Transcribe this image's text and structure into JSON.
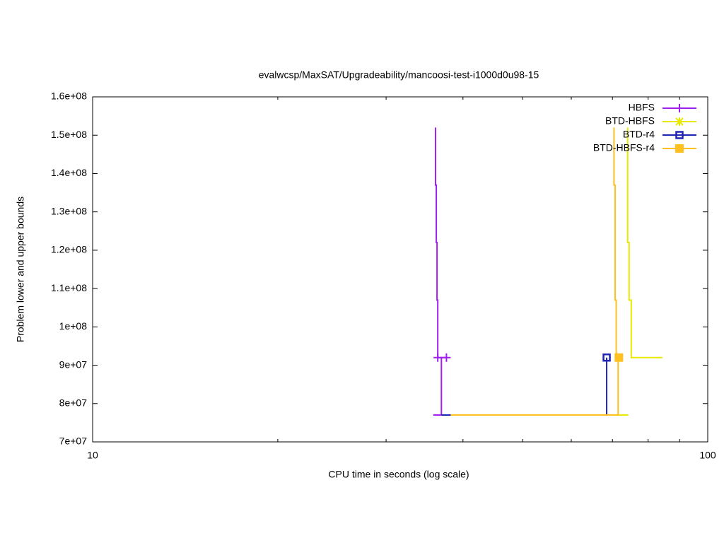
{
  "chart_data": {
    "type": "line",
    "title": "evalwcsp/MaxSAT/Upgradeability/mancoosi-test-i1000d0u98-15",
    "x_label": "CPU time in seconds (log scale)",
    "y_label": "Problem lower and upper bounds",
    "xlim": [
      10,
      100
    ],
    "x_log": true,
    "xticks": [
      10,
      100
    ],
    "xminorticks": [
      20,
      30,
      40,
      50,
      60,
      70,
      80,
      90
    ],
    "ylim": [
      70000000,
      160000000
    ],
    "yticks": [
      {
        "value": 70000000,
        "label": "7e+07"
      },
      {
        "value": 80000000,
        "label": "8e+07"
      },
      {
        "value": 90000000,
        "label": "9e+07"
      },
      {
        "value": 100000000,
        "label": "1e+08"
      },
      {
        "value": 110000000,
        "label": "1.1e+08"
      },
      {
        "value": 120000000,
        "label": "1.2e+08"
      },
      {
        "value": 130000000,
        "label": "1.3e+08"
      },
      {
        "value": 140000000,
        "label": "1.4e+08"
      },
      {
        "value": 150000000,
        "label": "1.5e+08"
      },
      {
        "value": 160000000,
        "label": "1.6e+08"
      }
    ],
    "legend": "top-right",
    "series": [
      {
        "name": "HBFS",
        "color": "#a020f0",
        "marker": "plus",
        "x": [
          35.8,
          36.9,
          36.9,
          null,
          36.1,
          36.1,
          36.2,
          36.2,
          36.3,
          36.3,
          36.4,
          36.4,
          37.6
        ],
        "y": [
          77000000,
          77000000,
          92000000,
          null,
          152000000,
          137000000,
          137000000,
          122000000,
          122000000,
          107000000,
          107000000,
          92000000,
          92000000
        ],
        "marker_x": [
          36.4,
          37.6
        ],
        "marker_y": [
          92000000,
          92000000
        ]
      },
      {
        "name": "BTD-HBFS",
        "color": "#e8e800",
        "marker": "star",
        "x": [
          38.2,
          74.3,
          null,
          74.1,
          74.1,
          74.5,
          74.5,
          75.1,
          75.1,
          84.4
        ],
        "y": [
          77000000,
          77000000,
          null,
          152000000,
          122000000,
          122000000,
          107000000,
          107000000,
          92000000,
          92000000
        ],
        "marker_x": [],
        "marker_y": []
      },
      {
        "name": "BTD-r4",
        "color": "#1f24b4",
        "marker": "open-square",
        "x": [
          36.9,
          68.5,
          68.5
        ],
        "y": [
          77000000,
          77000000,
          92000000
        ],
        "marker_x": [
          68.5
        ],
        "marker_y": [
          92000000
        ]
      },
      {
        "name": "BTD-HBFS-r4",
        "color": "#ffc020",
        "marker": "filled-square",
        "x": [
          38.2,
          71.5,
          71.5,
          null,
          70.4,
          70.4,
          70.7,
          70.7,
          71.0,
          71.0,
          71.5
        ],
        "y": [
          77000000,
          77000000,
          92000000,
          null,
          152000000,
          137000000,
          137000000,
          107000000,
          107000000,
          92000000,
          92000000
        ],
        "marker_x": [
          71.7
        ],
        "marker_y": [
          92000000
        ]
      }
    ]
  }
}
